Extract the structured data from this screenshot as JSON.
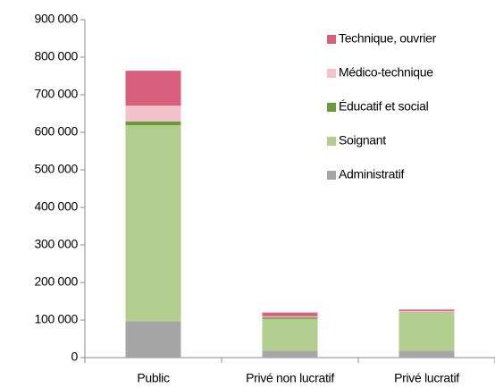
{
  "chart_data": {
    "type": "stacked_bar",
    "categories": [
      "Public",
      "Privé non lucratif",
      "Privé lucratif"
    ],
    "series": [
      {
        "name": "Administratif",
        "color": "#a6a6a6",
        "values": [
          97000,
          18000,
          18000
        ]
      },
      {
        "name": "Soignant",
        "color": "#b3cf8f",
        "values": [
          522000,
          85000,
          102000
        ]
      },
      {
        "name": "Éducatif et social",
        "color": "#6a9a3a",
        "values": [
          10000,
          4000,
          1000
        ]
      },
      {
        "name": "Médico-technique",
        "color": "#f4c2cd",
        "values": [
          42000,
          3000,
          3000
        ]
      },
      {
        "name": "Technique, ouvrier",
        "color": "#d9607d",
        "values": [
          93000,
          10000,
          4000
        ]
      }
    ],
    "ylim": [
      0,
      900000
    ],
    "yticks": [
      0,
      {
        "value": 100000,
        "label": "100 000"
      },
      {
        "value": 200000,
        "label": "200 000"
      },
      {
        "value": 300000,
        "label": "300 000"
      },
      {
        "value": 400000,
        "label": "400 000"
      },
      {
        "value": 500000,
        "label": "500 000"
      },
      {
        "value": 600000,
        "label": "600 000"
      },
      {
        "value": 700000,
        "label": "700 000"
      },
      {
        "value": 800000,
        "label": "800 000"
      },
      {
        "value": 900000,
        "label": "900 000"
      }
    ],
    "grid": false,
    "legend": "top-right"
  }
}
